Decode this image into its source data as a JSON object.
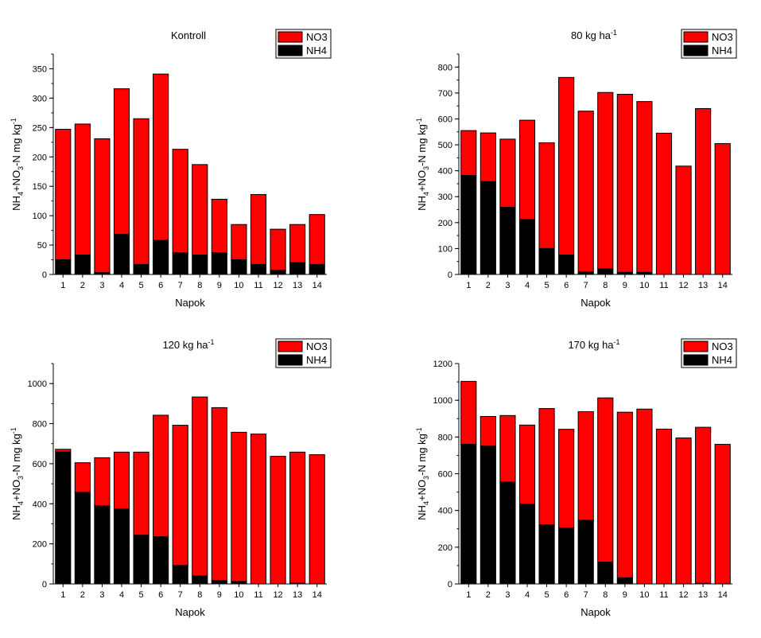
{
  "colors": {
    "no3": "#ff0000",
    "nh4": "#000000"
  },
  "chart_data": [
    {
      "type": "bar",
      "stacked": true,
      "title": "Kontroll",
      "title_unit": "",
      "xlabel": "Napok",
      "ylabel": {
        "main": "NH",
        "sub1": "4",
        "mid": "+NO",
        "sub2": "3",
        "end": "-N mg kg",
        "sup": "-1"
      },
      "ylim": [
        0,
        375
      ],
      "yticks": [
        0,
        50,
        100,
        150,
        200,
        250,
        300,
        350
      ],
      "ytick_labels": [
        "0",
        "50",
        "100",
        "150",
        "200",
        "250",
        "300",
        "350"
      ],
      "minor_step": 25,
      "categories": [
        "1",
        "2",
        "3",
        "4",
        "5",
        "6",
        "7",
        "8",
        "9",
        "10",
        "11",
        "12",
        "13",
        "14"
      ],
      "series": [
        {
          "name": "NH4",
          "values": [
            25,
            33,
            3,
            68,
            17,
            58,
            37,
            33,
            37,
            25,
            17,
            7,
            20,
            17
          ]
        },
        {
          "name": "NO3",
          "values": [
            222,
            223,
            228,
            248,
            248,
            283,
            176,
            154,
            91,
            60,
            119,
            70,
            65,
            85
          ]
        }
      ],
      "totals": [
        247,
        256,
        231,
        316,
        265,
        341,
        213,
        187,
        128,
        85,
        136,
        77,
        85,
        102
      ],
      "legend": {
        "placement": "top-right",
        "entries": [
          "NO3",
          "NH4"
        ]
      }
    },
    {
      "type": "bar",
      "stacked": true,
      "title": "80 kg ha",
      "title_unit": "-1",
      "xlabel": "Napok",
      "ylabel": {
        "main": "NH",
        "sub1": "4",
        "mid": "+NO",
        "sub2": "3",
        "end": "-N mg kg",
        "sup": "-1"
      },
      "ylim": [
        0,
        850
      ],
      "yticks": [
        0,
        100,
        200,
        300,
        400,
        500,
        600,
        700,
        800
      ],
      "ytick_labels": [
        "0",
        "100",
        "200",
        "300",
        "400",
        "500",
        "600",
        "700",
        "800"
      ],
      "minor_step": 50,
      "categories": [
        "1",
        "2",
        "3",
        "4",
        "5",
        "6",
        "7",
        "8",
        "9",
        "10",
        "11",
        "12",
        "13",
        "14"
      ],
      "series": [
        {
          "name": "NH4",
          "values": [
            382,
            358,
            259,
            213,
            100,
            75,
            10,
            22,
            8,
            8,
            0,
            0,
            0,
            0
          ]
        },
        {
          "name": "NO3",
          "values": [
            173,
            188,
            263,
            382,
            408,
            685,
            620,
            680,
            687,
            659,
            545,
            418,
            640,
            505
          ]
        }
      ],
      "totals": [
        555,
        546,
        522,
        595,
        508,
        760,
        630,
        702,
        695,
        667,
        545,
        418,
        640,
        505
      ],
      "legend": {
        "placement": "top-right",
        "entries": [
          "NO3",
          "NH4"
        ]
      }
    },
    {
      "type": "bar",
      "stacked": true,
      "title": "120 kg ha",
      "title_unit": "-1",
      "xlabel": "Napok",
      "ylabel": {
        "main": "NH",
        "sub1": "4",
        "mid": "+NO",
        "sub2": "3",
        "end": "-N mg kg",
        "sup": "-1"
      },
      "ylim": [
        0,
        1100
      ],
      "yticks": [
        0,
        200,
        400,
        600,
        800,
        1000
      ],
      "ytick_labels": [
        "0",
        "200",
        "400",
        "600",
        "800",
        "1000"
      ],
      "minor_step": 100,
      "categories": [
        "1",
        "2",
        "3",
        "4",
        "5",
        "6",
        "7",
        "8",
        "9",
        "10",
        "11",
        "12",
        "13",
        "14"
      ],
      "series": [
        {
          "name": "NH4",
          "values": [
            658,
            457,
            390,
            375,
            243,
            235,
            92,
            40,
            18,
            12,
            0,
            0,
            3,
            0
          ]
        },
        {
          "name": "NO3",
          "values": [
            14,
            148,
            240,
            283,
            415,
            607,
            700,
            893,
            862,
            745,
            748,
            637,
            655,
            645
          ]
        }
      ],
      "totals": [
        672,
        605,
        630,
        658,
        658,
        842,
        792,
        933,
        880,
        757,
        748,
        637,
        658,
        645
      ],
      "legend": {
        "placement": "top-right",
        "entries": [
          "NO3",
          "NH4"
        ]
      }
    },
    {
      "type": "bar",
      "stacked": true,
      "title": "170 kg ha",
      "title_unit": "-1",
      "xlabel": "Napok",
      "ylabel": {
        "main": "NH",
        "sub1": "4",
        "mid": "+NO",
        "sub2": "3",
        "end": "-N mg kg",
        "sup": "-1"
      },
      "ylim": [
        0,
        1200
      ],
      "yticks": [
        0,
        200,
        400,
        600,
        800,
        1000,
        1200
      ],
      "ytick_labels": [
        "0",
        "200",
        "400",
        "600",
        "800",
        "1000",
        "1200"
      ],
      "minor_step": 100,
      "categories": [
        "1",
        "2",
        "3",
        "4",
        "5",
        "6",
        "7",
        "8",
        "9",
        "10",
        "11",
        "12",
        "13",
        "14"
      ],
      "series": [
        {
          "name": "NH4",
          "values": [
            760,
            750,
            555,
            435,
            322,
            305,
            348,
            118,
            33,
            0,
            0,
            0,
            3,
            0
          ]
        },
        {
          "name": "NO3",
          "values": [
            343,
            162,
            362,
            430,
            633,
            537,
            590,
            895,
            902,
            952,
            843,
            795,
            850,
            760
          ]
        }
      ],
      "totals": [
        1103,
        912,
        917,
        865,
        955,
        842,
        938,
        1013,
        935,
        952,
        843,
        795,
        853,
        760
      ],
      "legend": {
        "placement": "top-right",
        "entries": [
          "NO3",
          "NH4"
        ]
      }
    }
  ]
}
